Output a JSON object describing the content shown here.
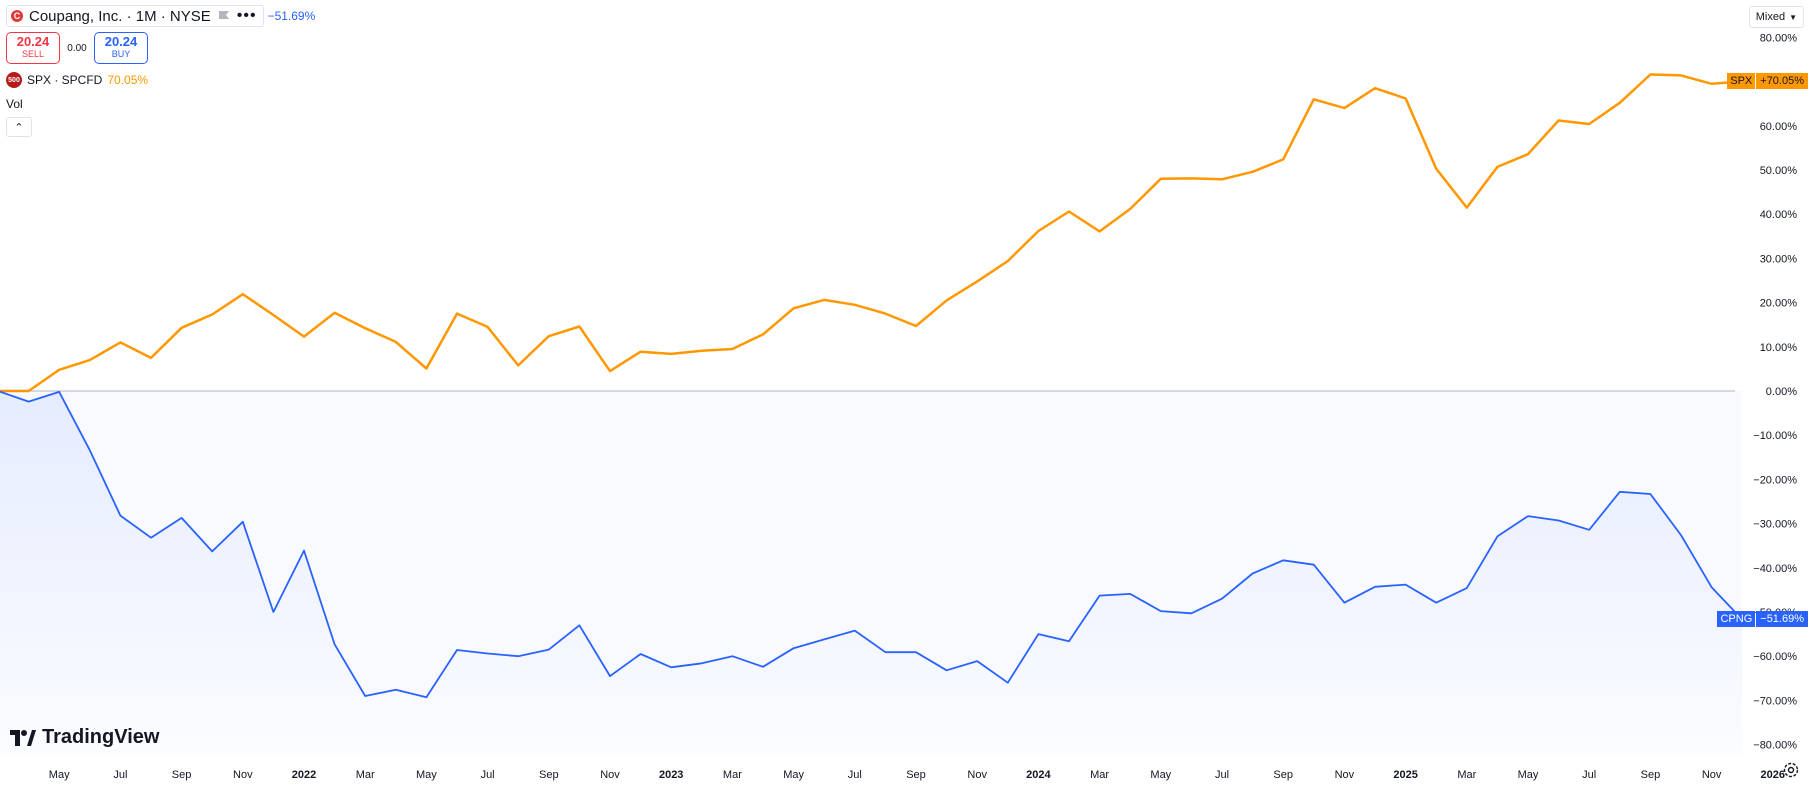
{
  "header": {
    "symbol_title": "Coupang, Inc. · 1M · NYSE",
    "main_change": "−51.69%",
    "sell_price": "20.24",
    "sell_label": "SELL",
    "spread": "0.00",
    "buy_price": "20.24",
    "buy_label": "BUY",
    "compare_symbol": "SPX · SPCFD",
    "compare_change": "70.05%",
    "compare_badge": "500",
    "vol_label": "Vol"
  },
  "scale_mode": "Mixed",
  "tags": {
    "spx_name": "SPX",
    "spx_value": "+70.05%",
    "cpng_name": "CPNG",
    "cpng_value": "−51.69%"
  },
  "branding": {
    "logo_text": "TradingView"
  },
  "colors": {
    "spx": "#ff9800",
    "cpng": "#2962ff",
    "axis_text": "#131722",
    "zero_line": "#b2b5be"
  },
  "chart_data": {
    "type": "line",
    "title": "",
    "y_unit": "%",
    "ylim": [
      -80,
      80
    ],
    "y_ticks": [
      -80,
      -70,
      -60,
      -50,
      -40,
      -30,
      -20,
      -10,
      0,
      10,
      20,
      30,
      40,
      50,
      60,
      70,
      80
    ],
    "y_tick_labels": [
      "−80.00%",
      "−70.00%",
      "−60.00%",
      "−50.00%",
      "−40.00%",
      "−30.00%",
      "−20.00%",
      "−10.00%",
      "0.00%",
      "10.00%",
      "20.00%",
      "30.00%",
      "40.00%",
      "50.00%",
      "60.00%",
      "70.00%",
      "80.00%"
    ],
    "x_start": "2021-03",
    "x_ticks": [
      {
        "i": 2,
        "label": "May"
      },
      {
        "i": 4,
        "label": "Jul"
      },
      {
        "i": 6,
        "label": "Sep"
      },
      {
        "i": 8,
        "label": "Nov"
      },
      {
        "i": 10,
        "label": "2022"
      },
      {
        "i": 12,
        "label": "Mar"
      },
      {
        "i": 14,
        "label": "May"
      },
      {
        "i": 16,
        "label": "Jul"
      },
      {
        "i": 18,
        "label": "Sep"
      },
      {
        "i": 20,
        "label": "Nov"
      },
      {
        "i": 22,
        "label": "2023"
      },
      {
        "i": 24,
        "label": "Mar"
      },
      {
        "i": 26,
        "label": "May"
      },
      {
        "i": 28,
        "label": "Jul"
      },
      {
        "i": 30,
        "label": "Sep"
      },
      {
        "i": 32,
        "label": "Nov"
      },
      {
        "i": 34,
        "label": "2024"
      },
      {
        "i": 36,
        "label": "Mar"
      },
      {
        "i": 38,
        "label": "May"
      },
      {
        "i": 40,
        "label": "Jul"
      },
      {
        "i": 42,
        "label": "Sep"
      },
      {
        "i": 44,
        "label": "Nov"
      },
      {
        "i": 46,
        "label": "2025"
      },
      {
        "i": 48,
        "label": "Mar"
      },
      {
        "i": 50,
        "label": "May"
      },
      {
        "i": 52,
        "label": "Jul"
      },
      {
        "i": 54,
        "label": "Sep"
      },
      {
        "i": 56,
        "label": "Nov"
      },
      {
        "i": 58,
        "label": "2026"
      }
    ],
    "series": [
      {
        "name": "SPX",
        "values": [
          0,
          0,
          4.8,
          7,
          11,
          7.5,
          14.3,
          17.3,
          21.9,
          17.2,
          12.3,
          17.7,
          14.2,
          11.1,
          5.1,
          17.5,
          14.5,
          5.8,
          12.4,
          14.6,
          4.5,
          8.9,
          8.4,
          9.1,
          9.5,
          12.8,
          18.7,
          20.6,
          19.5,
          17.5,
          14.7,
          20.5,
          24.8,
          29.4,
          36.2,
          40.6,
          36.1,
          41.2,
          48.0,
          48.1,
          47.9,
          49.6,
          52.4,
          66.0,
          64.0,
          68.5,
          66.2,
          50.3,
          41.5,
          50.7,
          53.6,
          61.2,
          60.4,
          65.2,
          71.6,
          71.4,
          69.5,
          70.05
        ]
      },
      {
        "name": "CPNG",
        "values": [
          0,
          -2.4,
          -0.2,
          -13.4,
          -28.2,
          -33.2,
          -28.7,
          -36.3,
          -29.6,
          -50.0,
          -36.1,
          -57.3,
          -69.0,
          -67.6,
          -69.3,
          -58.6,
          -59.4,
          -60.0,
          -58.5,
          -53.0,
          -64.5,
          -59.5,
          -62.5,
          -61.6,
          -60.0,
          -62.4,
          -58.2,
          -56.2,
          -54.2,
          -59.1,
          -59.1,
          -63.2,
          -61.1,
          -66.0,
          -55.0,
          -56.6,
          -46.3,
          -45.9,
          -49.8,
          -50.3,
          -47.0,
          -41.3,
          -38.3,
          -39.3,
          -47.9,
          -44.3,
          -43.8,
          -47.9,
          -44.6,
          -32.9,
          -28.3,
          -29.3,
          -31.4,
          -22.8,
          -23.3,
          -32.6,
          -44.4,
          -51.69
        ]
      }
    ]
  }
}
